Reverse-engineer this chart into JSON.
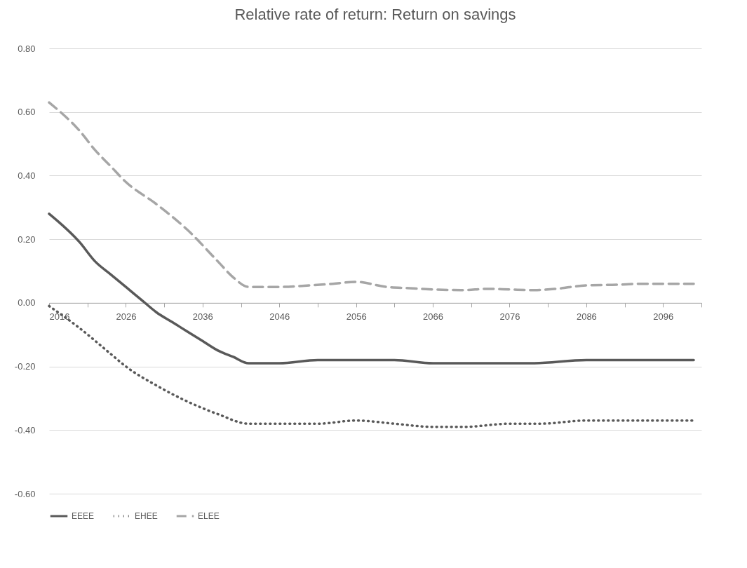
{
  "chart_data": {
    "type": "line",
    "title": "Relative rate of return: Return on savings",
    "xlim": [
      2016,
      2101
    ],
    "xticks": [
      2016,
      {
        "value": 2021,
        "label": null
      },
      2026,
      {
        "value": 2031,
        "label": null
      },
      2036,
      {
        "value": 2041,
        "label": null
      },
      2046,
      {
        "value": 2051,
        "label": null
      },
      2056,
      {
        "value": 2061,
        "label": null
      },
      2066,
      {
        "value": 2071,
        "label": null
      },
      2076,
      {
        "value": 2081,
        "label": null
      },
      2086,
      {
        "value": 2091,
        "label": null
      },
      2096,
      {
        "value": 2101,
        "label": null
      }
    ],
    "ylim": [
      -0.6,
      0.8
    ],
    "yticks": [
      {
        "value": -0.6,
        "label": "-0.60"
      },
      {
        "value": -0.4,
        "label": "-0.40"
      },
      {
        "value": -0.2,
        "label": "-0.20"
      },
      {
        "value": 0,
        "label": "0.00"
      },
      {
        "value": 0.2,
        "label": "0.20"
      },
      {
        "value": 0.4,
        "label": "0.40"
      },
      {
        "value": 0.6,
        "label": "0.60"
      },
      {
        "value": 0.8,
        "label": "0.80"
      }
    ],
    "grid": "y",
    "legend": "bottom",
    "marker": "none",
    "series": [
      {
        "name": "EEEE",
        "color": "#595959",
        "line_style": "solid",
        "x": [
          2016,
          2020,
          2022,
          2024,
          2026,
          2028,
          2030,
          2032,
          2034,
          2036,
          2038,
          2040,
          2042,
          2046,
          2051,
          2056,
          2061,
          2066,
          2070,
          2076,
          2079,
          2086,
          2096,
          2100
        ],
        "values": [
          0.28,
          0.19,
          0.13,
          0.09,
          0.05,
          0.01,
          -0.03,
          -0.06,
          -0.09,
          -0.12,
          -0.15,
          -0.17,
          -0.19,
          -0.19,
          -0.18,
          -0.18,
          -0.18,
          -0.19,
          -0.19,
          -0.19,
          -0.19,
          -0.18,
          -0.18,
          -0.18
        ]
      },
      {
        "name": "EHEE",
        "color": "#595959",
        "line_style": "dotted",
        "x": [
          2016,
          2020,
          2024,
          2026,
          2030,
          2034,
          2038,
          2042,
          2046,
          2051,
          2056,
          2061,
          2066,
          2070,
          2076,
          2080,
          2086,
          2090,
          2096,
          2100
        ],
        "values": [
          -0.01,
          -0.08,
          -0.16,
          -0.2,
          -0.26,
          -0.31,
          -0.35,
          -0.38,
          -0.38,
          -0.38,
          -0.37,
          -0.38,
          -0.39,
          -0.39,
          -0.38,
          -0.38,
          -0.37,
          -0.37,
          -0.37,
          -0.37
        ]
      },
      {
        "name": "ELEE",
        "color": "#a6a6a6",
        "line_style": "dashed",
        "x": [
          2016,
          2020,
          2022,
          2024,
          2026,
          2030,
          2034,
          2038,
          2040,
          2042,
          2046,
          2050,
          2053,
          2056,
          2060,
          2063,
          2066,
          2070,
          2073,
          2076,
          2079,
          2082,
          2086,
          2090,
          2093,
          2100
        ],
        "values": [
          0.63,
          0.54,
          0.48,
          0.43,
          0.38,
          0.31,
          0.23,
          0.13,
          0.08,
          0.05,
          0.05,
          0.055,
          0.06,
          0.066,
          0.05,
          0.046,
          0.042,
          0.04,
          0.044,
          0.042,
          0.04,
          0.044,
          0.055,
          0.057,
          0.06,
          0.06
        ]
      }
    ]
  }
}
